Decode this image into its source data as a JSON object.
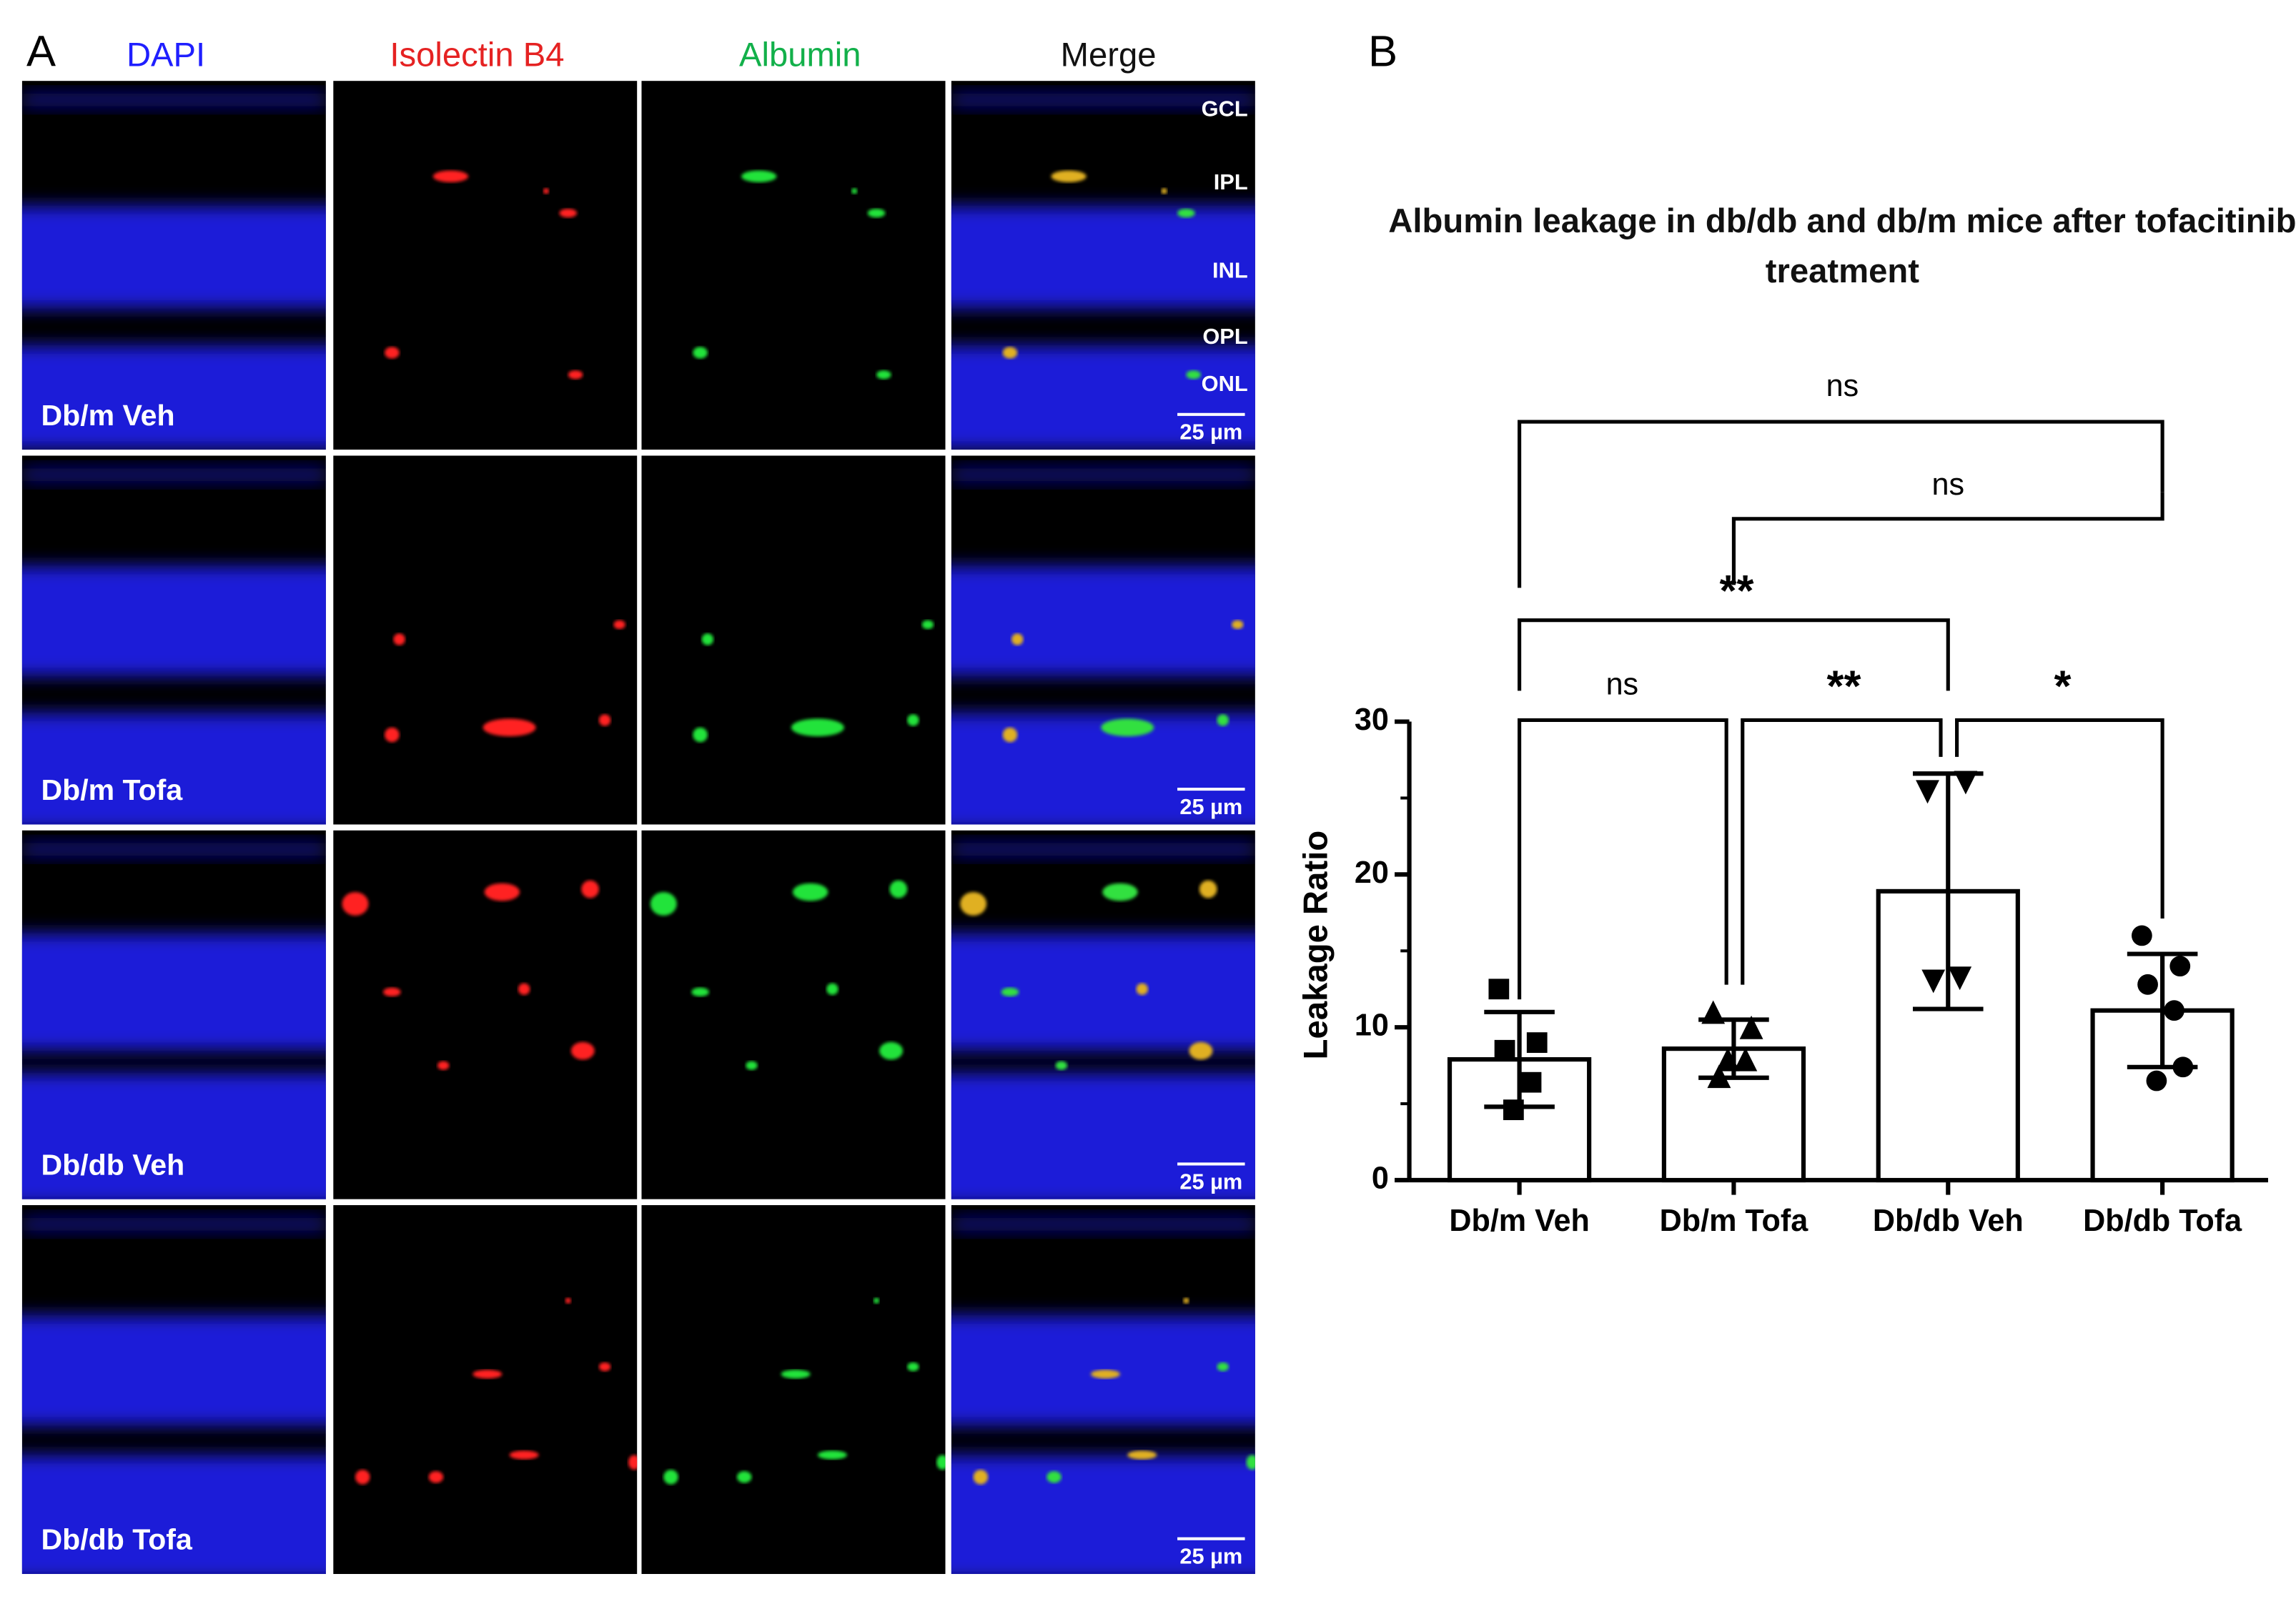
{
  "panel_a": {
    "label": "A",
    "columns": [
      "DAPI",
      "Isolectin B4",
      "Albumin",
      "Merge"
    ],
    "column_colors": [
      "#1f1fff",
      "#e52222",
      "#12b04a",
      "#111111"
    ],
    "layers": [
      "GCL",
      "IPL",
      "INL",
      "OPL",
      "ONL"
    ],
    "rows": [
      "Db/m Veh",
      "Db/m Tofa",
      "Db/db Veh",
      "Db/db Tofa"
    ],
    "scale_bar": "25 µm"
  },
  "chart_data": {
    "type": "bar",
    "panel_label": "B",
    "title": "Albumin leakage in db/db and db/m mice after tofacitinib treatment",
    "y_label": "Leakage Ratio",
    "categories": [
      "Db/m Veh",
      "Db/m Tofa",
      "Db/db Veh",
      "Db/db Tofa"
    ],
    "values": [
      7.9,
      8.6,
      18.9,
      11.1
    ],
    "errors": [
      3.1,
      1.9,
      7.7,
      3.7
    ],
    "points": [
      [
        12.5,
        9.0,
        8.5,
        6.4,
        4.6
      ],
      [
        10.9,
        9.9,
        6.7,
        7.8,
        7.8
      ],
      [
        25.5,
        26.1,
        13.1,
        13.3
      ],
      [
        16.0,
        14.0,
        12.8,
        11.1,
        6.5,
        7.4
      ]
    ],
    "markers": [
      "square",
      "triangle",
      "triangle-down",
      "circle"
    ],
    "color": "#000000",
    "ylim": [
      0,
      30
    ],
    "yticks": [
      0,
      10,
      20,
      30
    ],
    "minor_yticks": [
      5,
      15,
      25
    ],
    "significance": [
      "ns",
      "ns",
      "**",
      "ns",
      "**",
      "*"
    ]
  }
}
